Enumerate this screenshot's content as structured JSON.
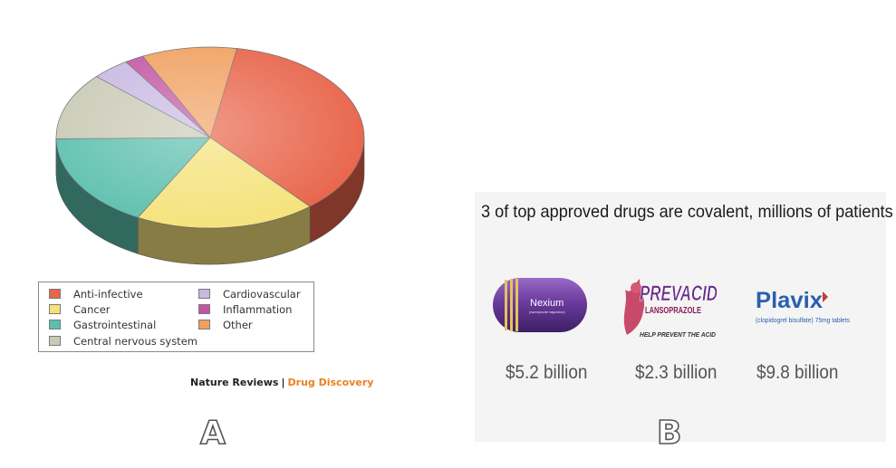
{
  "chart_data": {
    "type": "pie",
    "categories": [
      "Anti-infective",
      "Cancer",
      "Gastrointestinal",
      "Central nervous system",
      "Cardiovascular",
      "Inflammation",
      "Other"
    ],
    "values": [
      36,
      19,
      17,
      12,
      4,
      2,
      10
    ],
    "colors": [
      "#e8644a",
      "#f5e27a",
      "#5bbfad",
      "#c9c9b5",
      "#c8b8e2",
      "#c256a3",
      "#f0a060"
    ],
    "legend_placement": "bottom"
  },
  "legend": [
    {
      "label": "Anti-infective",
      "color": "#e8644a"
    },
    {
      "label": "Cancer",
      "color": "#f5e27a"
    },
    {
      "label": "Gastrointestinal",
      "color": "#5bbfad"
    },
    {
      "label": "Central nervous system",
      "color": "#c9c9b5"
    },
    {
      "label": "Cardiovascular",
      "color": "#c8b8e2"
    },
    {
      "label": "Inflammation",
      "color": "#c256a3"
    },
    {
      "label": "Other",
      "color": "#f0a060"
    }
  ],
  "credit": {
    "journal": "Nature Reviews",
    "separator": "|",
    "section": "Drug Discovery"
  },
  "panels": {
    "a": "A",
    "b": "B"
  },
  "right": {
    "headline": "3 of top approved drugs are covalent, millions of patients",
    "drugs": [
      {
        "logo_text": "Nexium",
        "logo_subtext": "(esomeprazole magnesium)",
        "price": "$5.2 billion",
        "logo_icon": "purple-capsule"
      },
      {
        "logo_text": "PREVACID",
        "logo_subtext": "LANSOPRAZOLE",
        "tagline": "HELP PREVENT THE ACID",
        "price": "$2.3 billion",
        "logo_icon": "flame-figure"
      },
      {
        "logo_text": "Plavix",
        "logo_subtext": "(clopidogrel bisulfate) 75mg tablets",
        "price": "$9.8 billion",
        "logo_icon": "wordmark"
      }
    ]
  }
}
